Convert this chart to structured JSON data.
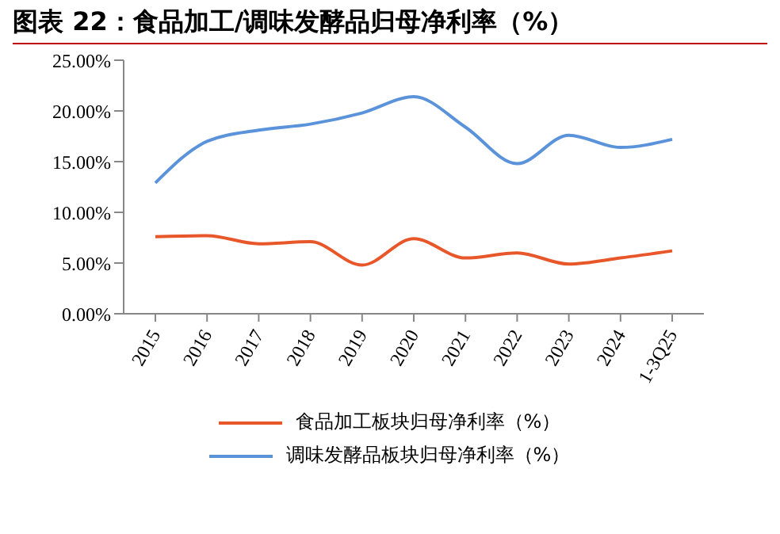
{
  "chart_data": {
    "type": "line",
    "title": "图表 22：食品加工/调味发酵品归母净利率（%）",
    "categories": [
      "2015",
      "2016",
      "2017",
      "2018",
      "2019",
      "2020",
      "2021",
      "2022",
      "2023",
      "2024",
      "1-3Q25"
    ],
    "series": [
      {
        "name": "食品加工板块归母净利率（%）",
        "color": "#e8572a",
        "values": [
          7.6,
          7.7,
          6.9,
          7.1,
          4.8,
          7.4,
          5.5,
          6.0,
          4.9,
          5.5,
          6.2
        ]
      },
      {
        "name": "调味发酵品板块归母净利率（%）",
        "color": "#5b93db",
        "values": [
          12.9,
          17.0,
          18.1,
          18.7,
          19.8,
          21.4,
          18.4,
          14.8,
          17.6,
          16.4,
          17.2
        ]
      }
    ],
    "ylim": [
      0,
      25
    ],
    "yticks": [
      {
        "value": 0,
        "label": "0.00%"
      },
      {
        "value": 5,
        "label": "5.00%"
      },
      {
        "value": 10,
        "label": "10.00%"
      },
      {
        "value": 15,
        "label": "15.00%"
      },
      {
        "value": 20,
        "label": "20.00%"
      },
      {
        "value": 25,
        "label": "25.00%"
      }
    ],
    "grid": false,
    "legend": "bottom",
    "marker": "none",
    "line_style": "solid"
  }
}
